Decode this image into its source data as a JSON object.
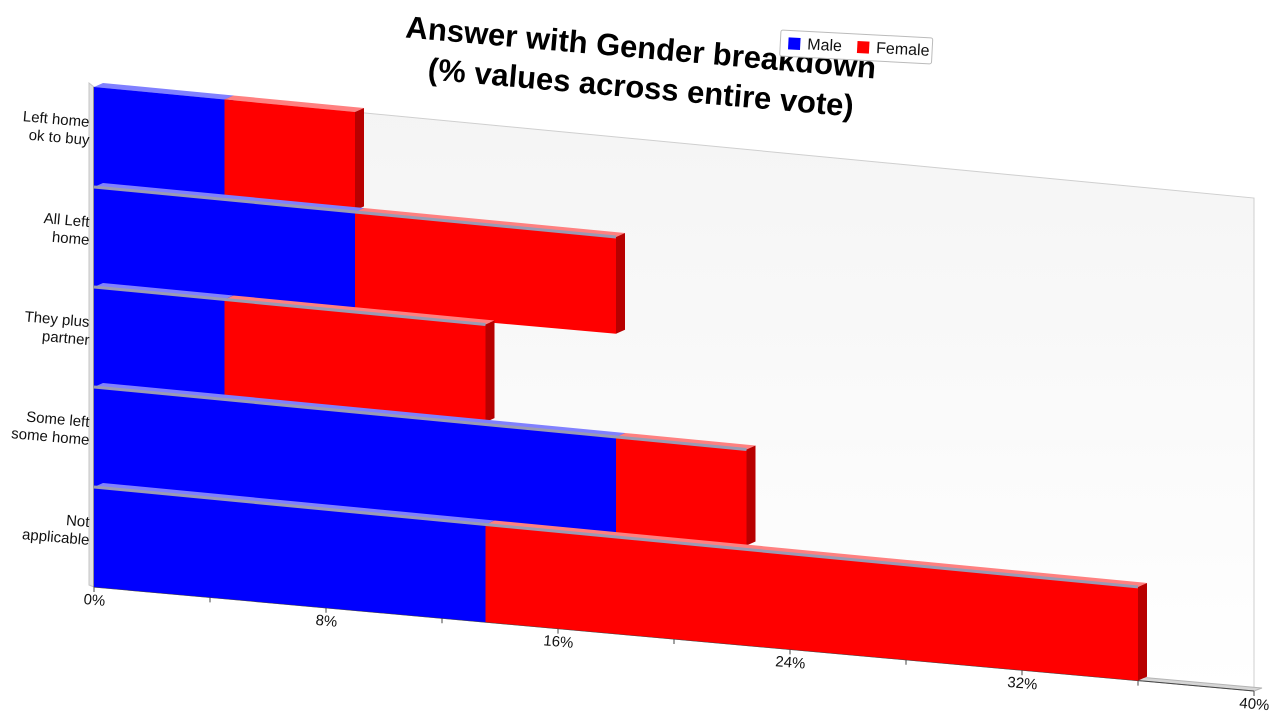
{
  "chart_data": {
    "type": "bar",
    "orientation": "horizontal",
    "stacked": true,
    "title_lines": [
      "Answer with Gender breakdown",
      "(% values across entire vote)"
    ],
    "categories": [
      [
        "Left home",
        "ok to buy"
      ],
      [
        "All Left",
        "home"
      ],
      [
        "They plus",
        "partner"
      ],
      [
        "Some left",
        "some home"
      ],
      [
        "Not",
        "applicable"
      ]
    ],
    "series": [
      {
        "name": "Male",
        "color": "#0000ff",
        "values": [
          4.5,
          9.0,
          4.5,
          18.0,
          13.5
        ]
      },
      {
        "name": "Female",
        "color": "#ff0000",
        "values": [
          4.5,
          9.0,
          9.0,
          4.5,
          22.5
        ]
      }
    ],
    "x_ticks": [
      "0%",
      "8%",
      "16%",
      "24%",
      "32%",
      "40%"
    ],
    "tick_values": [
      0,
      8,
      16,
      24,
      32,
      40
    ],
    "xlim": [
      0,
      40
    ],
    "legend_position": "top-right",
    "grid": false,
    "style": "3d-perspective"
  }
}
